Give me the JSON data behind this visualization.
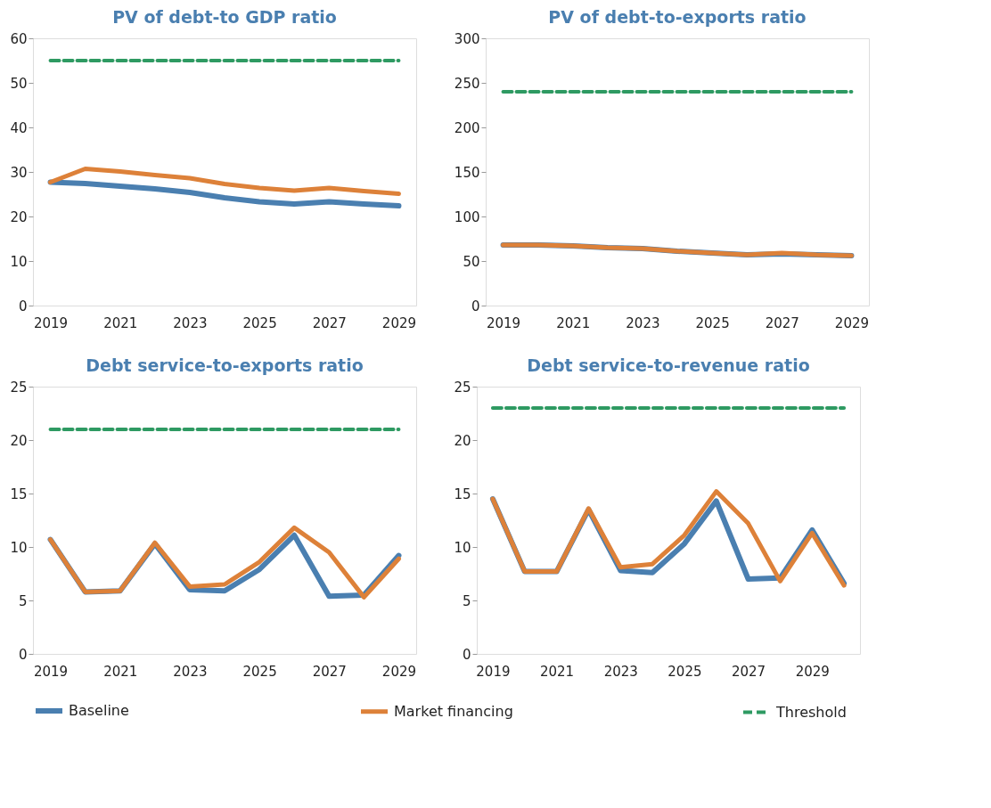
{
  "chart_data": [
    {
      "type": "line",
      "title": "PV of debt-to GDP ratio",
      "categories": [
        "2019",
        null,
        "2021",
        null,
        "2023",
        null,
        "2025",
        null,
        "2027",
        null,
        "2029"
      ],
      "ylim": [
        0,
        60
      ],
      "yticks": [
        0,
        10,
        20,
        30,
        40,
        50,
        60
      ],
      "grid": false,
      "legend": "bottom",
      "marker": "none",
      "series": [
        {
          "name": "Baseline",
          "color": "#4a7fb0",
          "line_style": "solid",
          "values": [
            27.7,
            27.4,
            26.8,
            26.2,
            25.4,
            24.2,
            23.3,
            22.8,
            23.3,
            22.8,
            22.4
          ]
        },
        {
          "name": "Market financing",
          "color": "#dd8139",
          "line_style": "solid",
          "values": [
            27.7,
            30.7,
            30.1,
            29.3,
            28.6,
            27.3,
            26.4,
            25.8,
            26.4,
            25.7,
            25.1
          ]
        },
        {
          "name": "Threshold",
          "color": "#2e9a62",
          "line_style": "dashed",
          "values": [
            55,
            55,
            55,
            55,
            55,
            55,
            55,
            55,
            55,
            55,
            55
          ]
        }
      ]
    },
    {
      "type": "line",
      "title": "PV of debt-to-exports ratio",
      "categories": [
        "2019",
        null,
        "2021",
        null,
        "2023",
        null,
        "2025",
        null,
        "2027",
        null,
        "2029"
      ],
      "ylim": [
        0,
        300
      ],
      "yticks": [
        0,
        50,
        100,
        150,
        200,
        250,
        300
      ],
      "grid": false,
      "legend": "bottom",
      "marker": "none",
      "series": [
        {
          "name": "Baseline",
          "color": "#4a7fb0",
          "line_style": "solid",
          "values": [
            68,
            68,
            67,
            65,
            64,
            61,
            59,
            57,
            58,
            57,
            56
          ]
        },
        {
          "name": "Market financing",
          "color": "#dd8139",
          "line_style": "solid",
          "values": [
            68,
            68,
            67,
            65,
            64,
            61,
            59,
            57,
            59,
            57,
            56
          ]
        },
        {
          "name": "Threshold",
          "color": "#2e9a62",
          "line_style": "dashed",
          "values": [
            240,
            240,
            240,
            240,
            240,
            240,
            240,
            240,
            240,
            240,
            240
          ]
        }
      ]
    },
    {
      "type": "line",
      "title": "Debt service-to-exports ratio",
      "categories": [
        "2019",
        null,
        "2021",
        null,
        "2023",
        null,
        "2025",
        null,
        "2027",
        null,
        "2029"
      ],
      "ylim": [
        0,
        25
      ],
      "yticks": [
        0,
        5,
        10,
        15,
        20,
        25
      ],
      "grid": false,
      "legend": "bottom",
      "marker": "none",
      "series": [
        {
          "name": "Baseline",
          "color": "#4a7fb0",
          "line_style": "solid",
          "values": [
            10.7,
            5.8,
            5.9,
            10.3,
            6.0,
            5.9,
            7.9,
            11.1,
            5.4,
            5.5,
            9.2
          ]
        },
        {
          "name": "Market financing",
          "color": "#dd8139",
          "line_style": "solid",
          "values": [
            10.7,
            5.8,
            5.9,
            10.4,
            6.3,
            6.5,
            8.6,
            11.8,
            9.5,
            5.3,
            8.9
          ]
        },
        {
          "name": "Threshold",
          "color": "#2e9a62",
          "line_style": "dashed",
          "values": [
            21,
            21,
            21,
            21,
            21,
            21,
            21,
            21,
            21,
            21,
            21
          ]
        }
      ]
    },
    {
      "type": "line",
      "title": "Debt service-to-revenue ratio",
      "categories": [
        "2019",
        null,
        "2021",
        null,
        "2023",
        null,
        "2025",
        null,
        "2027",
        null,
        "2029",
        null
      ],
      "ylim": [
        0,
        25
      ],
      "yticks": [
        0,
        5,
        10,
        15,
        20,
        25
      ],
      "grid": false,
      "legend": "bottom",
      "marker": "none",
      "series": [
        {
          "name": "Baseline",
          "color": "#4a7fb0",
          "line_style": "solid",
          "values": [
            14.5,
            7.7,
            7.7,
            13.5,
            7.8,
            7.6,
            10.3,
            14.3,
            7.0,
            7.1,
            11.6,
            6.6
          ]
        },
        {
          "name": "Market financing",
          "color": "#dd8139",
          "line_style": "solid",
          "values": [
            14.5,
            7.7,
            7.7,
            13.6,
            8.1,
            8.4,
            11.1,
            15.2,
            12.2,
            6.8,
            11.3,
            6.4
          ]
        },
        {
          "name": "Threshold",
          "color": "#2e9a62",
          "line_style": "dashed",
          "values": [
            23,
            23,
            23,
            23,
            23,
            23,
            23,
            23,
            23,
            23,
            23,
            23
          ]
        }
      ]
    }
  ]
}
